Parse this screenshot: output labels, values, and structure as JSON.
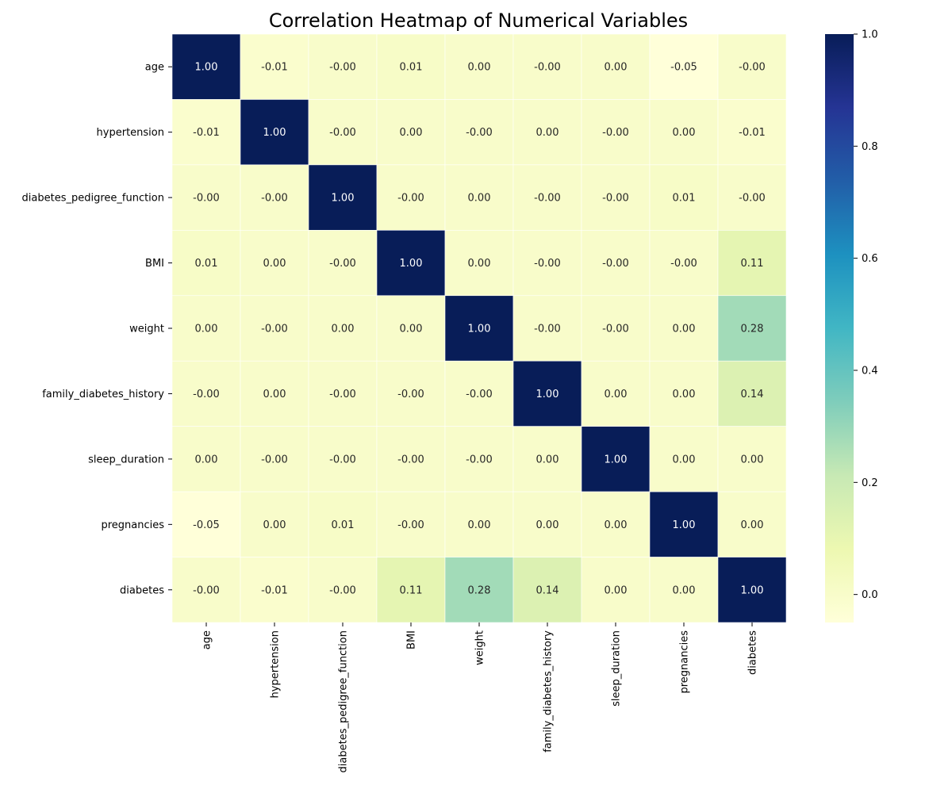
{
  "chart_data": {
    "type": "heatmap",
    "title": "Correlation Heatmap of Numerical Variables",
    "xlabel": "",
    "ylabel": "",
    "row_labels": [
      "age",
      "hypertension",
      "diabetes_pedigree_function",
      "BMI",
      "weight",
      "family_diabetes_history",
      "sleep_duration",
      "pregnancies",
      "diabetes"
    ],
    "col_labels": [
      "age",
      "hypertension",
      "diabetes_pedigree_function",
      "BMI",
      "weight",
      "family_diabetes_history",
      "sleep_duration",
      "pregnancies",
      "diabetes"
    ],
    "values": [
      [
        1.0,
        -0.01,
        -0.0,
        0.01,
        0.0,
        -0.0,
        0.0,
        -0.05,
        -0.0
      ],
      [
        -0.01,
        1.0,
        -0.0,
        0.0,
        -0.0,
        0.0,
        -0.0,
        0.0,
        -0.01
      ],
      [
        -0.0,
        -0.0,
        1.0,
        -0.0,
        0.0,
        -0.0,
        -0.0,
        0.01,
        -0.0
      ],
      [
        0.01,
        0.0,
        -0.0,
        1.0,
        0.0,
        -0.0,
        -0.0,
        -0.0,
        0.11
      ],
      [
        0.0,
        -0.0,
        0.0,
        0.0,
        1.0,
        -0.0,
        -0.0,
        0.0,
        0.28
      ],
      [
        -0.0,
        0.0,
        -0.0,
        -0.0,
        -0.0,
        1.0,
        0.0,
        0.0,
        0.14
      ],
      [
        0.0,
        -0.0,
        -0.0,
        -0.0,
        -0.0,
        0.0,
        1.0,
        0.0,
        0.0
      ],
      [
        -0.05,
        0.0,
        0.01,
        -0.0,
        0.0,
        0.0,
        0.0,
        1.0,
        0.0
      ],
      [
        -0.0,
        -0.01,
        -0.0,
        0.11,
        0.28,
        0.14,
        0.0,
        0.0,
        1.0
      ]
    ],
    "cell_labels": [
      [
        "1.00",
        "-0.01",
        "-0.00",
        "0.01",
        "0.00",
        "-0.00",
        "0.00",
        "-0.05",
        "-0.00"
      ],
      [
        "-0.01",
        "1.00",
        "-0.00",
        "0.00",
        "-0.00",
        "0.00",
        "-0.00",
        "0.00",
        "-0.01"
      ],
      [
        "-0.00",
        "-0.00",
        "1.00",
        "-0.00",
        "0.00",
        "-0.00",
        "-0.00",
        "0.01",
        "-0.00"
      ],
      [
        "0.01",
        "0.00",
        "-0.00",
        "1.00",
        "0.00",
        "-0.00",
        "-0.00",
        "-0.00",
        "0.11"
      ],
      [
        "0.00",
        "-0.00",
        "0.00",
        "0.00",
        "1.00",
        "-0.00",
        "-0.00",
        "0.00",
        "0.28"
      ],
      [
        "-0.00",
        "0.00",
        "-0.00",
        "-0.00",
        "-0.00",
        "1.00",
        "0.00",
        "0.00",
        "0.14"
      ],
      [
        "0.00",
        "-0.00",
        "-0.00",
        "-0.00",
        "-0.00",
        "0.00",
        "1.00",
        "0.00",
        "0.00"
      ],
      [
        "-0.05",
        "0.00",
        "0.01",
        "-0.00",
        "0.00",
        "0.00",
        "0.00",
        "1.00",
        "0.00"
      ],
      [
        "-0.00",
        "-0.01",
        "-0.00",
        "0.11",
        "0.28",
        "0.14",
        "0.00",
        "0.00",
        "1.00"
      ]
    ],
    "colormap": "YlGnBu",
    "vmin": -0.05,
    "vmax": 1.0,
    "colorbar": {
      "ticks": [
        0.0,
        0.2,
        0.4,
        0.6,
        0.8,
        1.0
      ],
      "tick_labels": [
        "0.0",
        "0.2",
        "0.4",
        "0.6",
        "0.8",
        "1.0"
      ]
    },
    "grid": false,
    "legend": "colorbar-right"
  },
  "colors": {
    "colormap_stops": [
      "#ffffd9",
      "#edf8b1",
      "#c7e9b4",
      "#7fcdbb",
      "#41b6c4",
      "#1d91c0",
      "#225ea8",
      "#253494",
      "#081d58"
    ],
    "cell_border": "#ffffff",
    "text_dark": "#262626",
    "text_light": "#ffffff"
  }
}
